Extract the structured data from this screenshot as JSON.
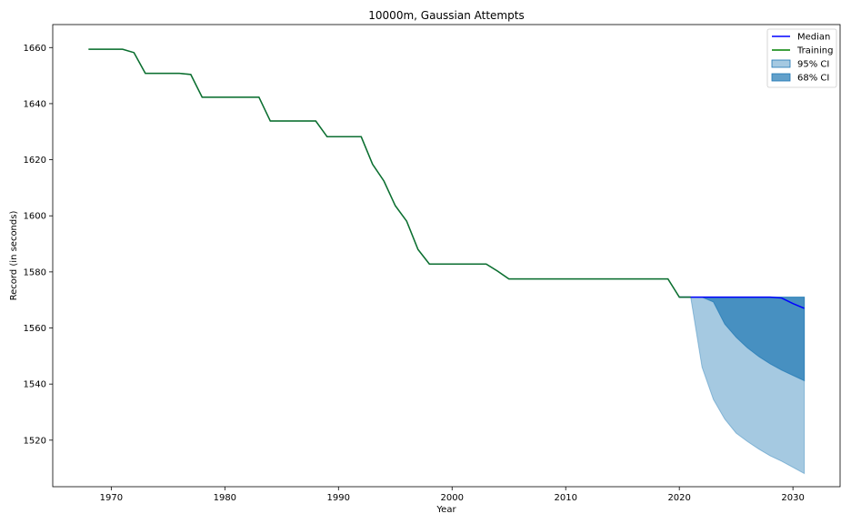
{
  "chart_data": {
    "type": "line",
    "title": "10000m, Gaussian Attempts",
    "xlabel": "Year",
    "ylabel": "Record (in seconds)",
    "xlim": [
      1964.85,
      2034.15
    ],
    "ylim": [
      1503.4,
      1668.2
    ],
    "xticks": [
      1970,
      1980,
      1990,
      2000,
      2010,
      2020,
      2030
    ],
    "yticks": [
      1520,
      1540,
      1560,
      1580,
      1600,
      1620,
      1640,
      1660
    ],
    "grid": false,
    "legend_position": "top-right",
    "colors": {
      "median": "#0000ff",
      "training": "#008000",
      "ci95": "#1f77b4",
      "ci68": "#1f77b4"
    },
    "series": [
      {
        "name": "Median",
        "x": [
          2020,
          2021,
          2022,
          2023,
          2024,
          2025,
          2026,
          2027,
          2028,
          2029,
          2030,
          2031
        ],
        "y": [
          1571.0,
          1571.0,
          1571.0,
          1571.0,
          1571.0,
          1571.0,
          1571.0,
          1571.0,
          1571.0,
          1570.7,
          1568.7,
          1567.0
        ]
      },
      {
        "name": "Training",
        "x": [
          1968,
          1969,
          1970,
          1971,
          1972,
          1973,
          1974,
          1975,
          1976,
          1977,
          1978,
          1979,
          1980,
          1981,
          1982,
          1983,
          1984,
          1985,
          1986,
          1987,
          1988,
          1989,
          1990,
          1991,
          1992,
          1993,
          1994,
          1995,
          1996,
          1997,
          1998,
          1999,
          2000,
          2001,
          2002,
          2003,
          2004,
          2005,
          2006,
          2007,
          2008,
          2009,
          2010,
          2011,
          2012,
          2013,
          2014,
          2015,
          2016,
          2017,
          2018,
          2019,
          2020,
          2021
        ],
        "y": [
          1659.4,
          1659.4,
          1659.4,
          1659.4,
          1658.2,
          1650.8,
          1650.8,
          1650.8,
          1650.8,
          1650.4,
          1642.3,
          1642.3,
          1642.3,
          1642.3,
          1642.3,
          1642.3,
          1633.8,
          1633.8,
          1633.8,
          1633.8,
          1633.8,
          1628.2,
          1628.2,
          1628.2,
          1628.2,
          1618.4,
          1612.4,
          1603.6,
          1598.1,
          1588.0,
          1582.8,
          1582.8,
          1582.8,
          1582.8,
          1582.8,
          1582.8,
          1580.3,
          1577.5,
          1577.5,
          1577.5,
          1577.5,
          1577.5,
          1577.5,
          1577.5,
          1577.5,
          1577.5,
          1577.5,
          1577.5,
          1577.5,
          1577.5,
          1577.5,
          1577.5,
          1571.0,
          1571.0
        ]
      },
      {
        "name": "95% CI",
        "x": [
          2021,
          2022,
          2023,
          2024,
          2025,
          2026,
          2027,
          2028,
          2029,
          2030,
          2031
        ],
        "lower": [
          1571.0,
          1546.0,
          1534.5,
          1527.5,
          1522.5,
          1519.5,
          1516.8,
          1514.4,
          1512.5,
          1510.3,
          1508.1
        ],
        "upper": [
          1571.0,
          1571.0,
          1571.0,
          1571.0,
          1571.0,
          1571.0,
          1571.0,
          1571.0,
          1571.0,
          1571.0,
          1571.0
        ]
      },
      {
        "name": "68% CI",
        "x": [
          2021,
          2022,
          2023,
          2024,
          2025,
          2026,
          2027,
          2028,
          2029,
          2030,
          2031
        ],
        "lower": [
          1571.0,
          1571.0,
          1569.3,
          1561.4,
          1556.7,
          1552.9,
          1549.8,
          1547.2,
          1545.0,
          1543.1,
          1541.2
        ],
        "upper": [
          1571.0,
          1571.0,
          1571.0,
          1571.0,
          1571.0,
          1571.0,
          1571.0,
          1571.0,
          1571.0,
          1571.0,
          1571.0
        ]
      }
    ]
  }
}
